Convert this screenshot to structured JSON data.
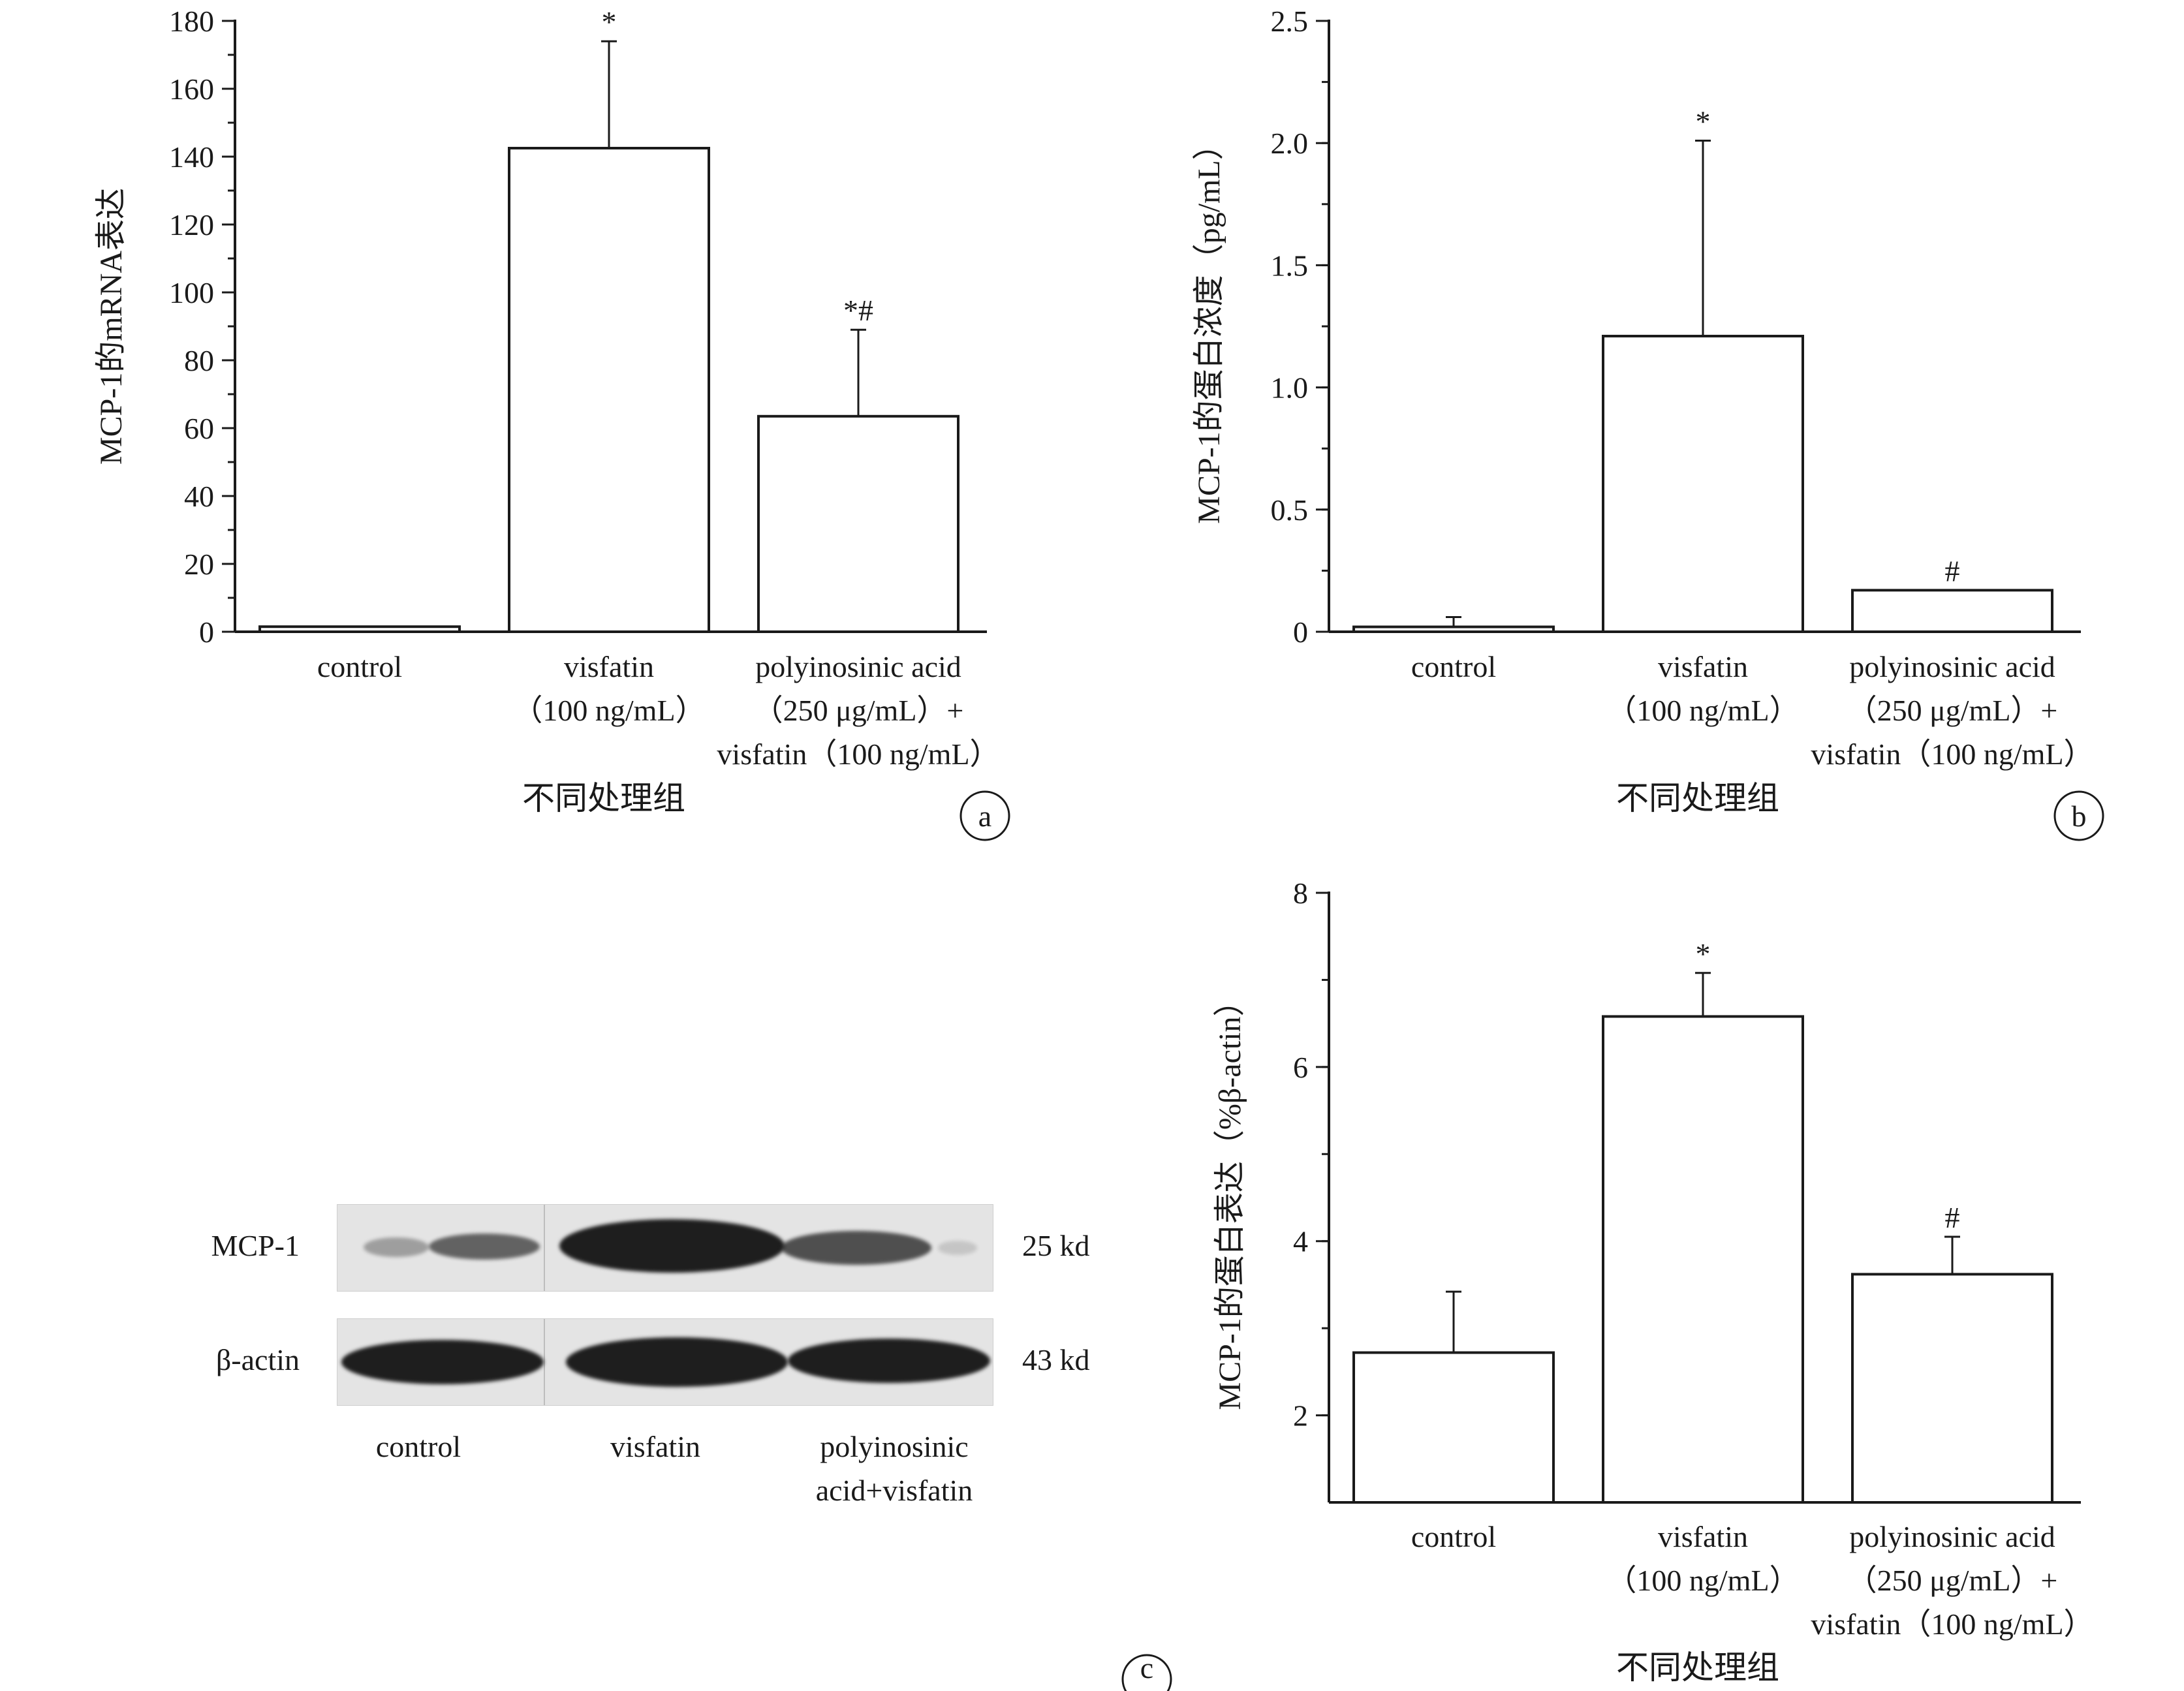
{
  "shared": {
    "xlabel": "不同处理组",
    "categories": [
      [
        "control"
      ],
      [
        "visfatin",
        "（100 ng/mL）"
      ],
      [
        "polyinosinic acid",
        "（250 μg/mL）+",
        "visfatin（100 ng/mL）"
      ]
    ]
  },
  "chart_data": [
    {
      "panel": "a",
      "type": "bar",
      "ylabel": "MCP-1的mRNA表达",
      "xlabel": "不同处理组",
      "ylim": [
        0,
        180
      ],
      "yticks": [
        0,
        20,
        40,
        60,
        80,
        100,
        120,
        140,
        160,
        180
      ],
      "ytick_labels": [
        "0",
        "20",
        "40",
        "60",
        "80",
        "100",
        "120",
        "140",
        "160",
        "180"
      ],
      "categories": [
        "control",
        "visfatin（100 ng/mL）",
        "polyinosinic acid（250 μg/mL）+visfatin（100 ng/mL）"
      ],
      "values": [
        1.5,
        142.5,
        63.5
      ],
      "errors": [
        0,
        31.5,
        25.5
      ],
      "annotations": [
        "",
        "*",
        "*#"
      ]
    },
    {
      "panel": "b",
      "type": "bar",
      "ylabel": "MCP-1的蛋白浓度（pg/mL）",
      "xlabel": "不同处理组",
      "ylim": [
        0,
        2.5
      ],
      "yticks": [
        0,
        0.5,
        1.0,
        1.5,
        2.0,
        2.5
      ],
      "ytick_labels": [
        "0",
        "0.5",
        "1.0",
        "1.5",
        "2.0",
        "2.5"
      ],
      "categories": [
        "control",
        "visfatin（100 ng/mL）",
        "polyinosinic acid（250 μg/mL）+visfatin（100 ng/mL）"
      ],
      "values": [
        0.02,
        1.21,
        0.17
      ],
      "errors": [
        0.04,
        0.8,
        0.0
      ],
      "annotations": [
        "",
        "*",
        "#"
      ]
    },
    {
      "panel": "c",
      "type": "bar",
      "ylabel": "MCP-1的蛋白表达（%β-actin）",
      "xlabel": "不同处理组",
      "ylim": [
        1,
        8
      ],
      "yticks": [
        2,
        4,
        6,
        8
      ],
      "ytick_labels": [
        "2",
        "4",
        "6",
        "8"
      ],
      "categories": [
        "control",
        "visfatin（100 ng/mL）",
        "polyinosinic acid（250 μg/mL）+visfatin（100 ng/mL）"
      ],
      "values": [
        2.72,
        6.58,
        3.62
      ],
      "errors": [
        0.7,
        0.5,
        0.43
      ],
      "annotations": [
        "",
        "*",
        "#"
      ]
    }
  ],
  "blot": {
    "rows": [
      {
        "label": "MCP-1",
        "size": "25 kd"
      },
      {
        "label": "β-actin",
        "size": "43 kd"
      }
    ],
    "lanes": [
      [
        "control"
      ],
      [
        "visfatin"
      ],
      [
        "polyinosinic",
        "acid+visfatin"
      ]
    ],
    "band_intensity": {
      "MCP-1": [
        0.25,
        1.0,
        0.6
      ],
      "β-actin": [
        1.0,
        1.0,
        1.0
      ]
    }
  },
  "panel_letters": [
    "a",
    "b",
    "c"
  ]
}
